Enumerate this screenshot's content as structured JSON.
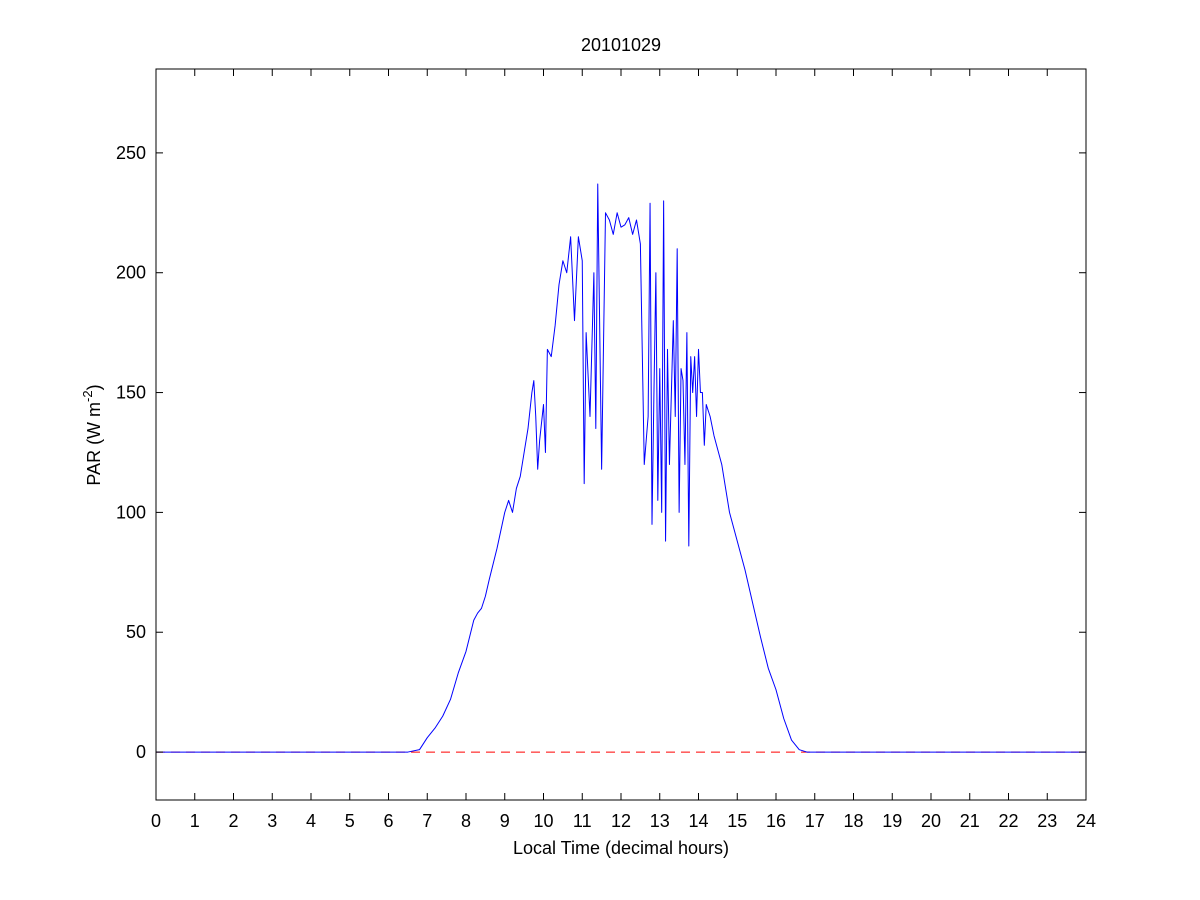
{
  "chart_data": {
    "type": "line",
    "title": "20101029",
    "xlabel": "Local Time (decimal hours)",
    "ylabel": {
      "prefix": "PAR (W m",
      "superscript": "-2",
      "suffix": ")"
    },
    "xlim": [
      0,
      24
    ],
    "ylim": [
      -20,
      285
    ],
    "x_ticks": [
      0,
      1,
      2,
      3,
      4,
      5,
      6,
      7,
      8,
      9,
      10,
      11,
      12,
      13,
      14,
      15,
      16,
      17,
      18,
      19,
      20,
      21,
      22,
      23,
      24
    ],
    "y_ticks": [
      0,
      50,
      100,
      150,
      200,
      250
    ],
    "grid": false,
    "colors": {
      "data_line": "#0000ff",
      "zero_line": "#ff0000",
      "axes": "#000000"
    },
    "series": [
      {
        "style": "solid",
        "color": "#0000ff",
        "x": [
          0,
          6.5,
          6.8,
          7.0,
          7.2,
          7.4,
          7.6,
          7.8,
          8.0,
          8.2,
          8.3,
          8.4,
          8.5,
          8.6,
          8.8,
          9.0,
          9.1,
          9.2,
          9.3,
          9.4,
          9.5,
          9.6,
          9.7,
          9.75,
          9.8,
          9.85,
          9.9,
          10.0,
          10.05,
          10.1,
          10.2,
          10.3,
          10.4,
          10.5,
          10.6,
          10.7,
          10.8,
          10.9,
          11.0,
          11.05,
          11.1,
          11.2,
          11.3,
          11.35,
          11.4,
          11.5,
          11.6,
          11.7,
          11.8,
          11.9,
          12.0,
          12.1,
          12.2,
          12.3,
          12.4,
          12.5,
          12.6,
          12.7,
          12.75,
          12.8,
          12.85,
          12.9,
          12.95,
          13.0,
          13.05,
          13.1,
          13.15,
          13.2,
          13.25,
          13.3,
          13.35,
          13.4,
          13.45,
          13.5,
          13.55,
          13.6,
          13.65,
          13.7,
          13.75,
          13.8,
          13.85,
          13.9,
          13.95,
          14.0,
          14.05,
          14.1,
          14.15,
          14.2,
          14.3,
          14.4,
          14.5,
          14.6,
          14.7,
          14.8,
          15.0,
          15.2,
          15.4,
          15.6,
          15.8,
          16.0,
          16.2,
          16.4,
          16.6,
          16.8,
          17.0,
          17.2,
          17.4,
          17.6,
          17.8,
          18.0,
          24
        ],
        "y": [
          0,
          0,
          1,
          6,
          10,
          15,
          22,
          33,
          42,
          55,
          58,
          60,
          65,
          72,
          85,
          100,
          105,
          100,
          110,
          115,
          125,
          135,
          150,
          155,
          140,
          118,
          130,
          145,
          125,
          168,
          165,
          178,
          195,
          205,
          200,
          215,
          180,
          215,
          205,
          112,
          175,
          140,
          200,
          135,
          237,
          118,
          225,
          222,
          216,
          225,
          219,
          220,
          223,
          216,
          222,
          212,
          120,
          140,
          229,
          95,
          150,
          200,
          105,
          160,
          100,
          230,
          88,
          168,
          120,
          150,
          180,
          140,
          210,
          100,
          160,
          155,
          120,
          175,
          86,
          165,
          150,
          165,
          140,
          168,
          150,
          150,
          128,
          145,
          140,
          132,
          126,
          120,
          110,
          100,
          88,
          76,
          62,
          48,
          35,
          26,
          14,
          5,
          1,
          0,
          0,
          0,
          0,
          0,
          0,
          0,
          0
        ]
      },
      {
        "style": "dashed",
        "color": "#ff0000",
        "x": [
          0,
          24
        ],
        "y": [
          0,
          0
        ]
      }
    ]
  }
}
